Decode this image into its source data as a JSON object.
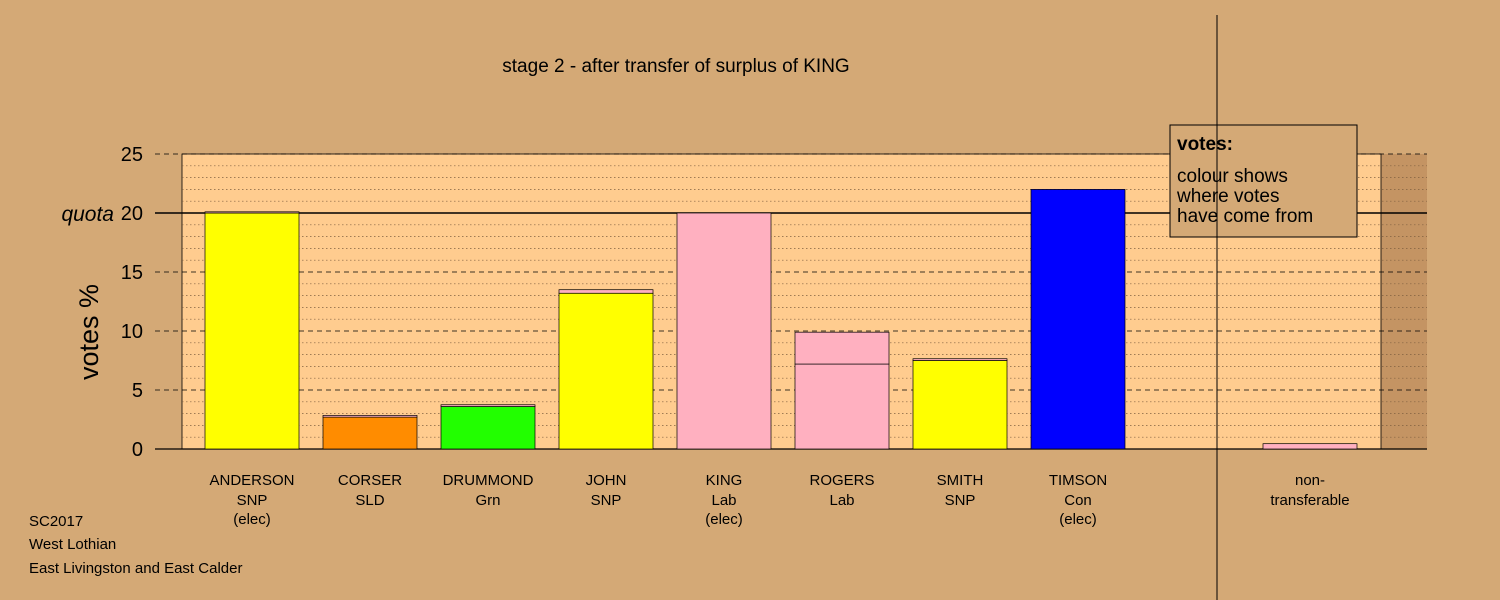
{
  "colors": {
    "background": "#d4a976",
    "plot_area": "#ffcc8f",
    "plot_area_right": "#c49463",
    "SNP": "#ffff00",
    "SLD": "#ff8c00",
    "Grn": "#22ff00",
    "Lab": "#ffb0c0",
    "Con": "#0000ff"
  },
  "chart_data": {
    "type": "bar",
    "stacked": true,
    "title": "stage 2 - after transfer of surplus of KING",
    "ylabel": "votes %",
    "xlabel": "",
    "ylim": [
      0,
      25
    ],
    "yticks": [
      0,
      5,
      10,
      15,
      20,
      25
    ],
    "quota": {
      "label": "quota",
      "value": 20
    },
    "grid": "dashed major, dotted minor",
    "candidates": [
      {
        "name": "ANDERSON",
        "party": "SNP",
        "status": "(elec)",
        "segments": [
          {
            "value": 20.0,
            "color": "#ffff00"
          },
          {
            "value": 0.1,
            "color": "#ffb0c0"
          }
        ]
      },
      {
        "name": "CORSER",
        "party": "SLD",
        "status": "",
        "segments": [
          {
            "value": 2.7,
            "color": "#ff8c00"
          },
          {
            "value": 0.15,
            "color": "#ffb0c0"
          }
        ]
      },
      {
        "name": "DRUMMOND",
        "party": "Grn",
        "status": "",
        "segments": [
          {
            "value": 3.6,
            "color": "#22ff00"
          },
          {
            "value": 0.15,
            "color": "#ffb0c0"
          }
        ]
      },
      {
        "name": "JOHN",
        "party": "SNP",
        "status": "",
        "segments": [
          {
            "value": 13.2,
            "color": "#ffff00"
          },
          {
            "value": 0.3,
            "color": "#ffb0c0"
          }
        ]
      },
      {
        "name": "KING",
        "party": "Lab",
        "status": "(elec)",
        "segments": [
          {
            "value": 20.0,
            "color": "#ffb0c0"
          }
        ]
      },
      {
        "name": "ROGERS",
        "party": "Lab",
        "status": "",
        "segments": [
          {
            "value": 7.2,
            "color": "#ffb0c0"
          },
          {
            "value": 2.7,
            "color": "#ffb0c0"
          }
        ]
      },
      {
        "name": "SMITH",
        "party": "SNP",
        "status": "",
        "segments": [
          {
            "value": 7.5,
            "color": "#ffff00"
          },
          {
            "value": 0.15,
            "color": "#ffb0c0"
          }
        ]
      },
      {
        "name": "TIMSON",
        "party": "Con",
        "status": "(elec)",
        "segments": [
          {
            "value": 22.0,
            "color": "#0000ff"
          }
        ]
      }
    ],
    "non_transferable": {
      "label_line1": "non-",
      "label_line2": "transferable",
      "segments": [
        {
          "value": 0.45,
          "color": "#ffb0c0"
        }
      ]
    },
    "legend": {
      "title": "votes:",
      "lines": [
        "colour shows",
        "where votes",
        "have come from"
      ],
      "placement": "top-right"
    }
  },
  "footer": {
    "line1": "SC2017",
    "line2": "West Lothian",
    "line3": "East Livingston and East Calder"
  }
}
